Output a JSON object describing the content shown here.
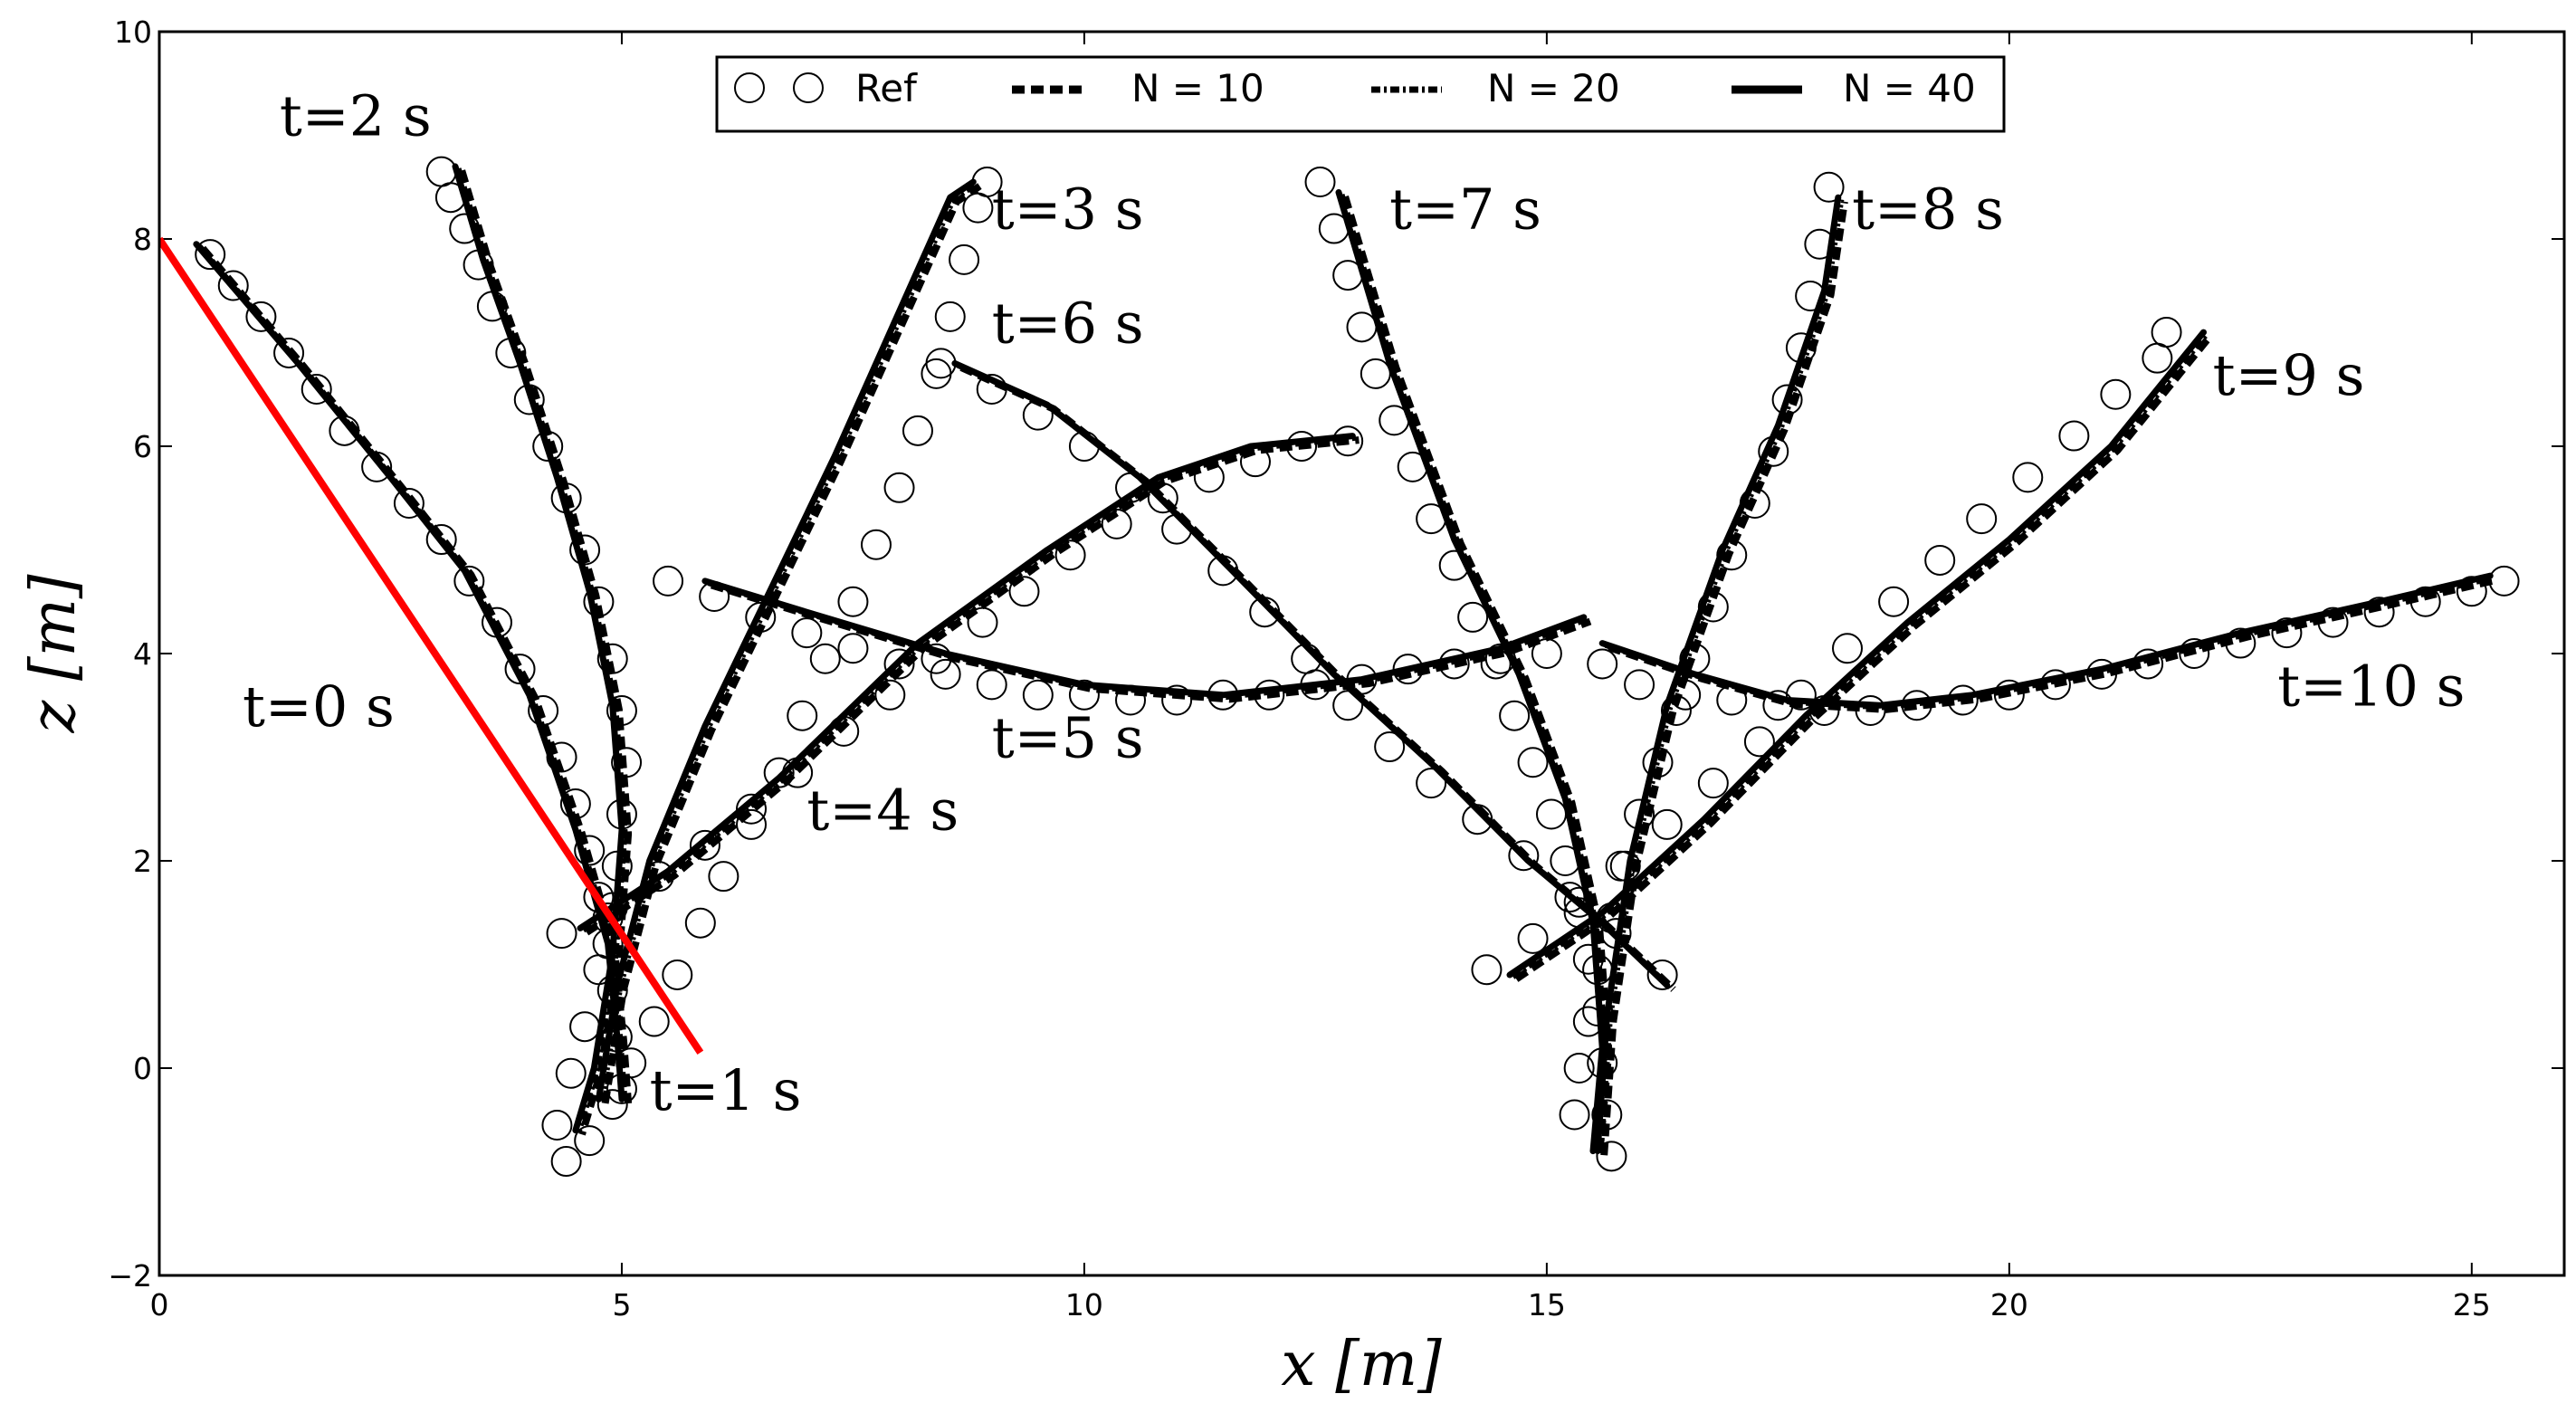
{
  "chart_data": {
    "type": "line",
    "xlabel": "x [m]",
    "ylabel": "z [m]",
    "xlim": [
      0,
      26
    ],
    "ylim": [
      -2,
      10
    ],
    "x_ticks": [
      "0",
      "5",
      "10",
      "15",
      "20",
      "25"
    ],
    "y_ticks": [
      "−2",
      "0",
      "2",
      "4",
      "6",
      "8",
      "10"
    ],
    "grid": false,
    "legend": {
      "placement": "top-center",
      "entries": [
        {
          "label": "Ref",
          "style": "open-circles"
        },
        {
          "label": "N = 10",
          "style": "dashed"
        },
        {
          "label": "N = 20",
          "style": "dash-dot"
        },
        {
          "label": "N = 40",
          "style": "solid"
        }
      ]
    },
    "colors": {
      "initial": "#ff0000",
      "series": "#000000"
    },
    "annotations": [
      {
        "text": "t=0 s",
        "x": 0.9,
        "y": 3.3
      },
      {
        "text": "t=1 s",
        "x": 5.3,
        "y": -0.4
      },
      {
        "text": "t=2 s",
        "x": 1.3,
        "y": 9.0
      },
      {
        "text": "t=3 s",
        "x": 9.0,
        "y": 8.1
      },
      {
        "text": "t=4 s",
        "x": 7.0,
        "y": 2.3
      },
      {
        "text": "t=5 s",
        "x": 9.0,
        "y": 3.0
      },
      {
        "text": "t=6 s",
        "x": 9.0,
        "y": 7.0
      },
      {
        "text": "t=7 s",
        "x": 13.3,
        "y": 8.1
      },
      {
        "text": "t=8 s",
        "x": 18.3,
        "y": 8.1
      },
      {
        "text": "t=9 s",
        "x": 22.2,
        "y": 6.5
      },
      {
        "text": "t=10 s",
        "x": 22.9,
        "y": 3.5
      }
    ],
    "initial_line": {
      "name": "t=0 s",
      "x": [
        0.0,
        5.85
      ],
      "y": [
        8.0,
        0.15
      ]
    },
    "snapshots": [
      {
        "t": "t=1 s",
        "N40": [
          [
            0.4,
            7.95
          ],
          [
            1.5,
            6.8
          ],
          [
            2.5,
            5.7
          ],
          [
            3.3,
            4.8
          ],
          [
            4.0,
            3.6
          ],
          [
            4.5,
            2.3
          ],
          [
            4.85,
            1.2
          ],
          [
            4.95,
            0.3
          ],
          [
            5.0,
            -0.3
          ]
        ],
        "ref": [
          [
            0.55,
            7.85
          ],
          [
            0.8,
            7.55
          ],
          [
            1.1,
            7.25
          ],
          [
            1.4,
            6.9
          ],
          [
            1.7,
            6.55
          ],
          [
            2.0,
            6.15
          ],
          [
            2.35,
            5.8
          ],
          [
            2.7,
            5.45
          ],
          [
            3.05,
            5.1
          ],
          [
            3.35,
            4.7
          ],
          [
            3.65,
            4.3
          ],
          [
            3.9,
            3.85
          ],
          [
            4.15,
            3.45
          ],
          [
            4.35,
            3.0
          ],
          [
            4.5,
            2.55
          ],
          [
            4.65,
            2.1
          ],
          [
            4.75,
            1.65
          ],
          [
            4.85,
            1.2
          ],
          [
            4.9,
            0.75
          ],
          [
            4.95,
            0.3
          ],
          [
            5.0,
            -0.2
          ]
        ]
      },
      {
        "t": "t=2 s",
        "N40": [
          [
            3.2,
            8.7
          ],
          [
            3.5,
            7.8
          ],
          [
            3.9,
            6.8
          ],
          [
            4.3,
            5.7
          ],
          [
            4.65,
            4.6
          ],
          [
            4.9,
            3.5
          ],
          [
            5.0,
            2.3
          ],
          [
            4.9,
            1.1
          ],
          [
            4.7,
            0.0
          ],
          [
            4.5,
            -0.6
          ]
        ],
        "ref": [
          [
            3.05,
            8.65
          ],
          [
            3.15,
            8.4
          ],
          [
            3.3,
            8.1
          ],
          [
            3.45,
            7.75
          ],
          [
            3.6,
            7.35
          ],
          [
            3.8,
            6.9
          ],
          [
            4.0,
            6.45
          ],
          [
            4.2,
            6.0
          ],
          [
            4.4,
            5.5
          ],
          [
            4.6,
            5.0
          ],
          [
            4.75,
            4.5
          ],
          [
            4.9,
            3.95
          ],
          [
            5.0,
            3.45
          ],
          [
            5.05,
            2.95
          ],
          [
            5.0,
            2.45
          ],
          [
            4.95,
            1.95
          ],
          [
            4.85,
            1.45
          ],
          [
            4.75,
            0.95
          ],
          [
            4.6,
            0.4
          ],
          [
            4.45,
            -0.05
          ],
          [
            4.3,
            -0.55
          ]
        ]
      },
      {
        "t": "t=3 s",
        "N40": [
          [
            4.75,
            -0.3
          ],
          [
            4.95,
            0.8
          ],
          [
            5.3,
            2.0
          ],
          [
            5.9,
            3.3
          ],
          [
            6.6,
            4.6
          ],
          [
            7.3,
            5.9
          ],
          [
            7.95,
            7.2
          ],
          [
            8.55,
            8.4
          ],
          [
            8.8,
            8.55
          ]
        ],
        "ref": [
          [
            4.4,
            -0.9
          ],
          [
            4.65,
            -0.7
          ],
          [
            4.9,
            -0.35
          ],
          [
            5.1,
            0.05
          ],
          [
            5.35,
            0.45
          ],
          [
            5.6,
            0.9
          ],
          [
            5.85,
            1.4
          ],
          [
            6.1,
            1.85
          ],
          [
            6.4,
            2.35
          ],
          [
            6.7,
            2.85
          ],
          [
            6.95,
            3.4
          ],
          [
            7.2,
            3.95
          ],
          [
            7.5,
            4.5
          ],
          [
            7.75,
            5.05
          ],
          [
            8.0,
            5.6
          ],
          [
            8.2,
            6.15
          ],
          [
            8.4,
            6.7
          ],
          [
            8.55,
            7.25
          ],
          [
            8.7,
            7.8
          ],
          [
            8.85,
            8.3
          ],
          [
            8.95,
            8.55
          ]
        ]
      },
      {
        "t": "t=4 s",
        "N40": [
          [
            4.55,
            1.35
          ],
          [
            5.5,
            1.9
          ],
          [
            6.7,
            2.8
          ],
          [
            8.2,
            4.1
          ],
          [
            9.6,
            5.0
          ],
          [
            10.8,
            5.7
          ],
          [
            11.8,
            6.0
          ],
          [
            12.9,
            6.1
          ]
        ],
        "ref": [
          [
            4.35,
            1.3
          ],
          [
            4.9,
            1.55
          ],
          [
            5.4,
            1.85
          ],
          [
            5.9,
            2.15
          ],
          [
            6.4,
            2.5
          ],
          [
            6.9,
            2.85
          ],
          [
            7.4,
            3.25
          ],
          [
            7.9,
            3.6
          ],
          [
            8.4,
            3.95
          ],
          [
            8.9,
            4.3
          ],
          [
            9.35,
            4.6
          ],
          [
            9.85,
            4.95
          ],
          [
            10.35,
            5.25
          ],
          [
            10.85,
            5.5
          ],
          [
            11.35,
            5.7
          ],
          [
            11.85,
            5.85
          ],
          [
            12.35,
            6.0
          ],
          [
            12.85,
            6.05
          ]
        ]
      },
      {
        "t": "t=5 s",
        "N40": [
          [
            5.9,
            4.7
          ],
          [
            7.0,
            4.4
          ],
          [
            8.5,
            4.0
          ],
          [
            10.0,
            3.7
          ],
          [
            11.5,
            3.6
          ],
          [
            13.0,
            3.75
          ],
          [
            14.5,
            4.05
          ],
          [
            15.4,
            4.35
          ]
        ],
        "ref": [
          [
            5.5,
            4.7
          ],
          [
            6.0,
            4.55
          ],
          [
            6.5,
            4.35
          ],
          [
            7.0,
            4.2
          ],
          [
            7.5,
            4.05
          ],
          [
            8.0,
            3.9
          ],
          [
            8.5,
            3.8
          ],
          [
            9.0,
            3.7
          ],
          [
            9.5,
            3.6
          ],
          [
            10.0,
            3.6
          ],
          [
            10.5,
            3.55
          ],
          [
            11.0,
            3.55
          ],
          [
            11.5,
            3.6
          ],
          [
            12.0,
            3.6
          ],
          [
            12.5,
            3.7
          ],
          [
            13.0,
            3.75
          ],
          [
            13.5,
            3.85
          ],
          [
            14.0,
            3.9
          ],
          [
            14.5,
            3.95
          ],
          [
            15.0,
            4.0
          ]
        ]
      },
      {
        "t": "t=6 s",
        "N40": [
          [
            8.6,
            6.8
          ],
          [
            9.6,
            6.4
          ],
          [
            10.6,
            5.7
          ],
          [
            11.6,
            4.8
          ],
          [
            12.7,
            3.8
          ],
          [
            13.8,
            2.9
          ],
          [
            14.8,
            2.0
          ],
          [
            15.6,
            1.4
          ],
          [
            16.3,
            0.8
          ]
        ],
        "ref": [
          [
            8.45,
            6.8
          ],
          [
            9.0,
            6.55
          ],
          [
            9.5,
            6.3
          ],
          [
            10.0,
            6.0
          ],
          [
            10.5,
            5.6
          ],
          [
            11.0,
            5.2
          ],
          [
            11.5,
            4.8
          ],
          [
            11.95,
            4.4
          ],
          [
            12.4,
            3.95
          ],
          [
            12.85,
            3.5
          ],
          [
            13.3,
            3.1
          ],
          [
            13.75,
            2.75
          ],
          [
            14.25,
            2.4
          ],
          [
            14.75,
            2.05
          ],
          [
            15.25,
            1.65
          ],
          [
            15.75,
            1.3
          ],
          [
            16.25,
            0.9
          ]
        ]
      },
      {
        "t": "t=7 s",
        "N40": [
          [
            12.75,
            8.45
          ],
          [
            13.3,
            6.8
          ],
          [
            14.0,
            5.1
          ],
          [
            14.7,
            3.8
          ],
          [
            15.2,
            2.6
          ],
          [
            15.5,
            1.4
          ],
          [
            15.6,
            0.2
          ],
          [
            15.5,
            -0.8
          ]
        ],
        "ref": [
          [
            12.55,
            8.55
          ],
          [
            12.7,
            8.1
          ],
          [
            12.85,
            7.65
          ],
          [
            13.0,
            7.15
          ],
          [
            13.15,
            6.7
          ],
          [
            13.35,
            6.25
          ],
          [
            13.55,
            5.8
          ],
          [
            13.75,
            5.3
          ],
          [
            14.0,
            4.85
          ],
          [
            14.2,
            4.35
          ],
          [
            14.45,
            3.9
          ],
          [
            14.65,
            3.4
          ],
          [
            14.85,
            2.95
          ],
          [
            15.05,
            2.45
          ],
          [
            15.2,
            2.0
          ],
          [
            15.35,
            1.5
          ],
          [
            15.45,
            1.05
          ],
          [
            15.55,
            0.55
          ],
          [
            15.6,
            0.05
          ],
          [
            15.65,
            -0.45
          ],
          [
            15.7,
            -0.85
          ]
        ]
      },
      {
        "t": "t=8 s",
        "N40": [
          [
            15.55,
            -0.8
          ],
          [
            15.65,
            0.5
          ],
          [
            15.9,
            2.0
          ],
          [
            16.3,
            3.5
          ],
          [
            16.9,
            5.0
          ],
          [
            17.5,
            6.2
          ],
          [
            18.0,
            7.5
          ],
          [
            18.15,
            8.4
          ]
        ],
        "ref": [
          [
            15.3,
            -0.45
          ],
          [
            15.35,
            0.0
          ],
          [
            15.45,
            0.45
          ],
          [
            15.55,
            0.95
          ],
          [
            15.7,
            1.45
          ],
          [
            15.85,
            1.95
          ],
          [
            16.0,
            2.45
          ],
          [
            16.2,
            2.95
          ],
          [
            16.4,
            3.45
          ],
          [
            16.6,
            3.95
          ],
          [
            16.8,
            4.45
          ],
          [
            17.0,
            4.95
          ],
          [
            17.25,
            5.45
          ],
          [
            17.45,
            5.95
          ],
          [
            17.6,
            6.45
          ],
          [
            17.75,
            6.95
          ],
          [
            17.85,
            7.45
          ],
          [
            17.95,
            7.95
          ],
          [
            18.05,
            8.5
          ]
        ]
      },
      {
        "t": "t=9 s",
        "N40": [
          [
            14.6,
            0.9
          ],
          [
            15.6,
            1.5
          ],
          [
            16.7,
            2.4
          ],
          [
            17.8,
            3.4
          ],
          [
            18.9,
            4.3
          ],
          [
            20.0,
            5.1
          ],
          [
            21.1,
            6.0
          ],
          [
            22.1,
            7.1
          ]
        ],
        "ref": [
          [
            14.35,
            0.95
          ],
          [
            14.85,
            1.25
          ],
          [
            15.35,
            1.6
          ],
          [
            15.8,
            1.95
          ],
          [
            16.3,
            2.35
          ],
          [
            16.8,
            2.75
          ],
          [
            17.3,
            3.15
          ],
          [
            17.75,
            3.6
          ],
          [
            18.25,
            4.05
          ],
          [
            18.75,
            4.5
          ],
          [
            19.25,
            4.9
          ],
          [
            19.7,
            5.3
          ],
          [
            20.2,
            5.7
          ],
          [
            20.7,
            6.1
          ],
          [
            21.15,
            6.5
          ],
          [
            21.6,
            6.85
          ],
          [
            21.7,
            7.1
          ]
        ]
      },
      {
        "t": "t=10 s",
        "N40": [
          [
            15.6,
            4.1
          ],
          [
            16.6,
            3.8
          ],
          [
            17.6,
            3.55
          ],
          [
            18.6,
            3.5
          ],
          [
            19.6,
            3.6
          ],
          [
            21.0,
            3.85
          ],
          [
            22.5,
            4.2
          ],
          [
            24.0,
            4.5
          ],
          [
            25.2,
            4.75
          ]
        ],
        "ref": [
          [
            15.6,
            3.9
          ],
          [
            16.0,
            3.7
          ],
          [
            16.5,
            3.6
          ],
          [
            17.0,
            3.55
          ],
          [
            17.5,
            3.5
          ],
          [
            18.0,
            3.45
          ],
          [
            18.5,
            3.45
          ],
          [
            19.0,
            3.5
          ],
          [
            19.5,
            3.55
          ],
          [
            20.0,
            3.6
          ],
          [
            20.5,
            3.7
          ],
          [
            21.0,
            3.8
          ],
          [
            21.5,
            3.9
          ],
          [
            22.0,
            4.0
          ],
          [
            22.5,
            4.1
          ],
          [
            23.0,
            4.2
          ],
          [
            23.5,
            4.3
          ],
          [
            24.0,
            4.4
          ],
          [
            24.5,
            4.5
          ],
          [
            25.0,
            4.6
          ],
          [
            25.35,
            4.7
          ]
        ]
      }
    ]
  }
}
